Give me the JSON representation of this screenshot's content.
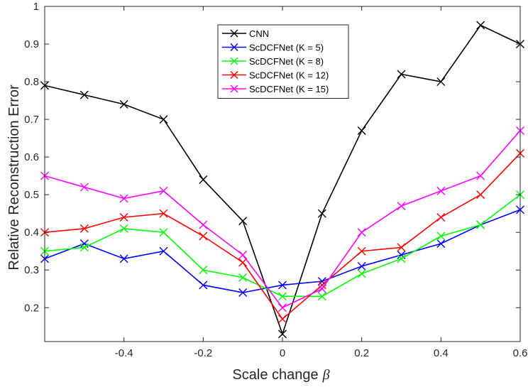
{
  "chart_data": {
    "type": "line",
    "title": "",
    "xlabel": "Scale change",
    "xlabel_symbol": "β",
    "ylabel": "Relative Reconstruction Error",
    "xlim": [
      -0.6,
      0.6
    ],
    "ylim": [
      0.11,
      1.0
    ],
    "xticks": [
      -0.4,
      -0.2,
      0,
      0.2,
      0.4,
      0.6
    ],
    "xtick_labels": [
      "-0.4",
      "-0.2",
      "0",
      "0.2",
      "0.4",
      "0.6"
    ],
    "yticks": [
      0.2,
      0.3,
      0.4,
      0.5,
      0.6,
      0.7,
      0.8,
      0.9,
      1.0
    ],
    "ytick_labels": [
      "0.2",
      "0.3",
      "0.4",
      "0.5",
      "0.6",
      "0.7",
      "0.8",
      "0.9",
      "1"
    ],
    "grid": false,
    "legend_position": "top-center",
    "marker": "x",
    "x": [
      -0.6,
      -0.5,
      -0.4,
      -0.3,
      -0.2,
      -0.1,
      0,
      0.1,
      0.2,
      0.3,
      0.4,
      0.5,
      0.6
    ],
    "series": [
      {
        "name": "CNN",
        "color": "#000000",
        "values": [
          0.79,
          0.765,
          0.74,
          0.7,
          0.54,
          0.43,
          0.13,
          0.45,
          0.67,
          0.82,
          0.8,
          0.95,
          0.9
        ]
      },
      {
        "name": "ScDCFNet (K = 5)",
        "color": "#0000ff",
        "values": [
          0.33,
          0.37,
          0.33,
          0.35,
          0.26,
          0.24,
          0.26,
          0.27,
          0.31,
          0.34,
          0.37,
          0.42,
          0.46
        ]
      },
      {
        "name": "ScDCFNet (K = 8)",
        "color": "#00ff00",
        "values": [
          0.35,
          0.36,
          0.41,
          0.4,
          0.3,
          0.28,
          0.23,
          0.23,
          0.29,
          0.33,
          0.39,
          0.42,
          0.5
        ]
      },
      {
        "name": "ScDCFNet (K = 12)",
        "color": "#ff0000",
        "values": [
          0.4,
          0.41,
          0.44,
          0.45,
          0.39,
          0.32,
          0.17,
          0.26,
          0.35,
          0.36,
          0.44,
          0.5,
          0.61
        ]
      },
      {
        "name": "ScDCFNet (K = 15)",
        "color": "#ff00ff",
        "values": [
          0.55,
          0.52,
          0.49,
          0.51,
          0.42,
          0.34,
          0.2,
          0.25,
          0.4,
          0.47,
          0.51,
          0.55,
          0.67
        ]
      }
    ]
  }
}
